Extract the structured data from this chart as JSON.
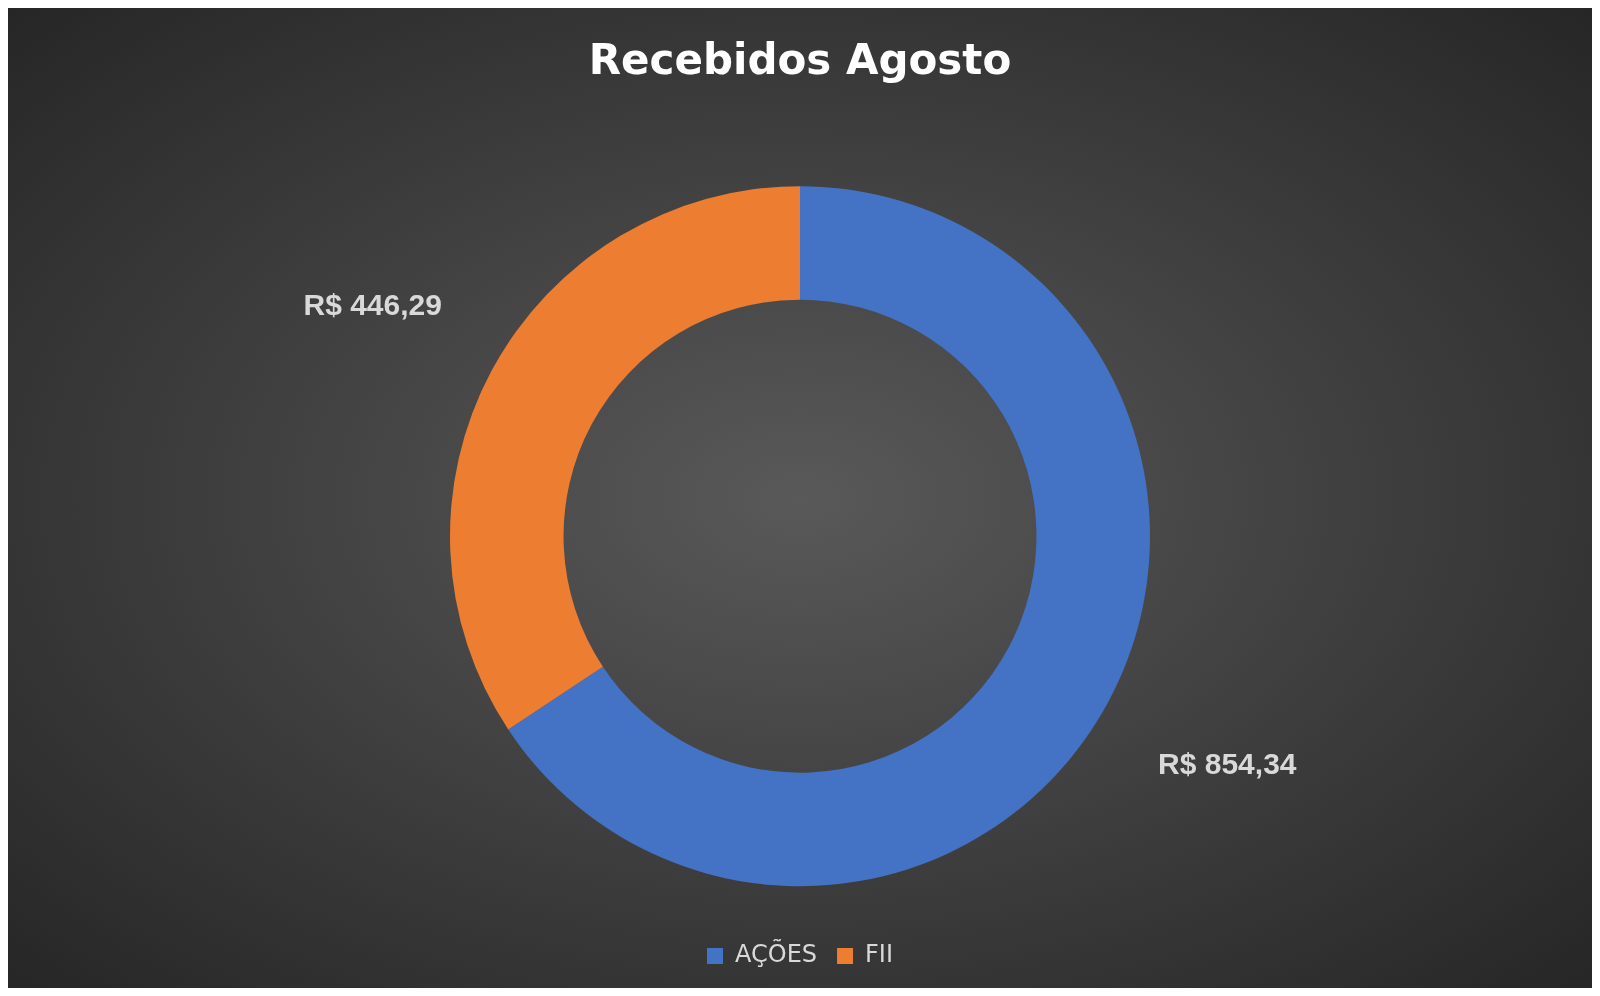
{
  "chart_data": {
    "type": "donut",
    "title": "Recebidos Agosto",
    "categories": [
      "AÇÕES",
      "FII"
    ],
    "values": [
      854.34,
      446.29
    ],
    "colors": [
      "#4472c4",
      "#ed7d31"
    ],
    "value_labels": [
      "R$ 854,34",
      "R$ 446,29"
    ],
    "legend": "bottom"
  }
}
